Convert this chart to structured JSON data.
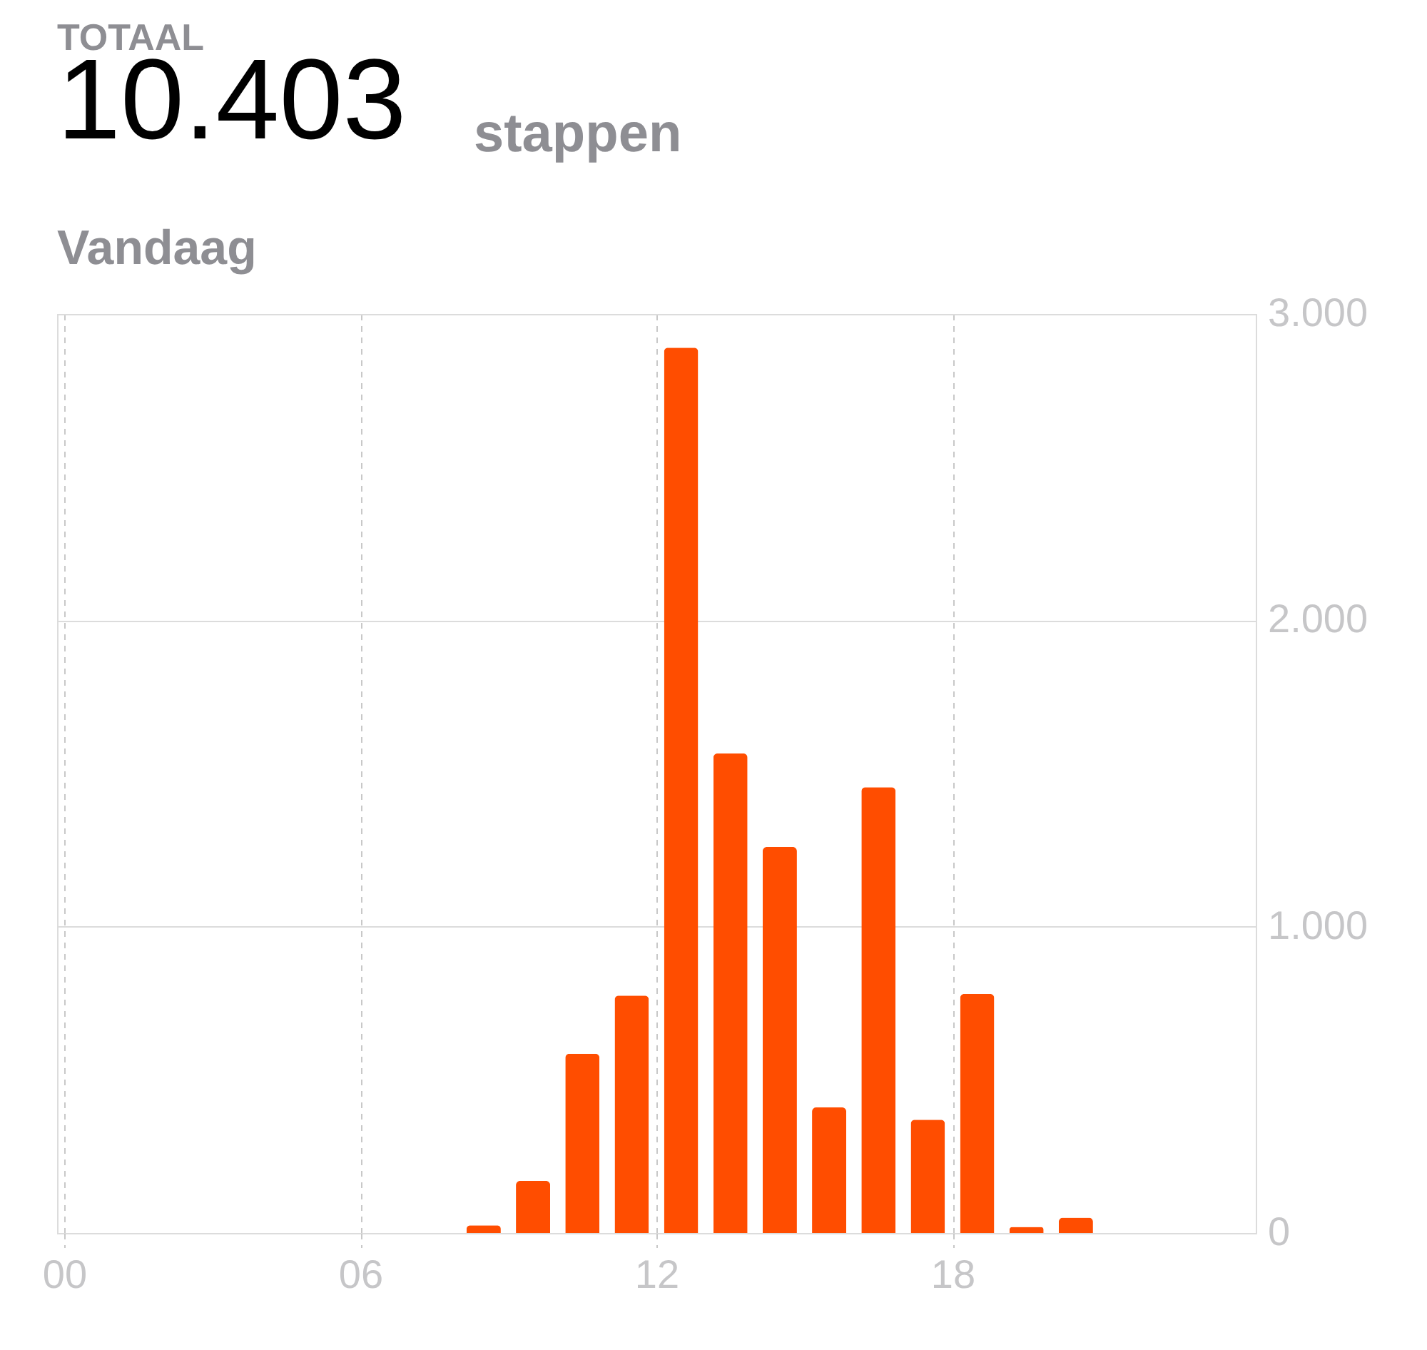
{
  "chart_data": {
    "type": "bar",
    "title": "10.403",
    "subtitle": "Vandaag",
    "annotations": [
      "TOTAAL",
      "stappen"
    ],
    "x": [
      8.5,
      9.5,
      10.5,
      11.5,
      12.5,
      13.5,
      14.5,
      15.5,
      16.5,
      17.5,
      18.5,
      19.5,
      20.5
    ],
    "values": [
      25,
      170,
      585,
      775,
      2890,
      1565,
      1260,
      410,
      1455,
      370,
      780,
      20,
      50
    ],
    "color": "#ff4d00",
    "xlim": [
      0,
      24
    ],
    "xticks": [
      {
        "value": 0,
        "label": "00"
      },
      {
        "value": 6,
        "label": "06"
      },
      {
        "value": 12,
        "label": "12"
      },
      {
        "value": 18,
        "label": "18"
      }
    ],
    "ylim": [
      0,
      3000
    ],
    "yticks": [
      0,
      {
        "value": 1000,
        "label": "1.000"
      },
      {
        "value": 2000,
        "label": "2.000"
      },
      {
        "value": 3000,
        "label": "3.000"
      }
    ],
    "grid": true
  }
}
